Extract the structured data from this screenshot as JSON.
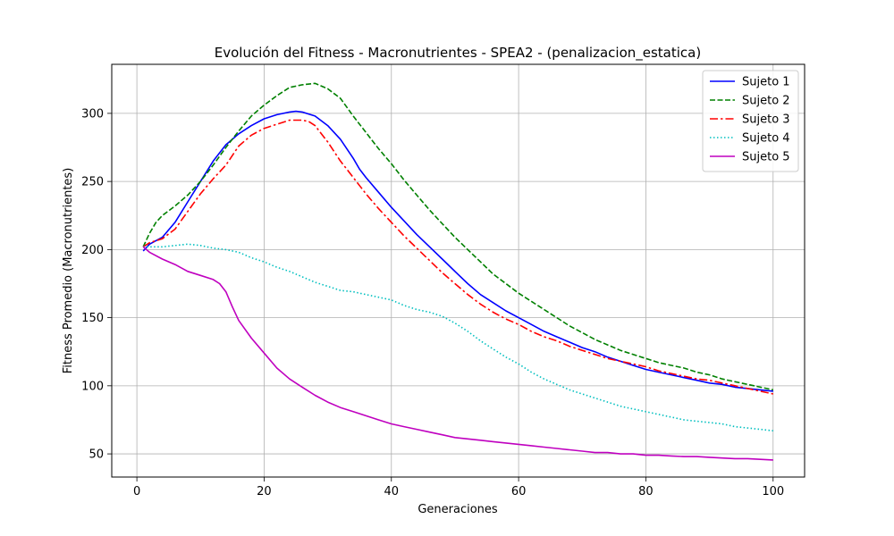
{
  "chart_data": {
    "type": "line",
    "title": "Evolución del Fitness - Macronutrientes - SPEA2 - (penalizacion_estatica)",
    "xlabel": "Generaciones",
    "ylabel": "Fitness Promedio (Macronutrientes)",
    "xlim": [
      -3.95,
      104.95
    ],
    "ylim": [
      33,
      336
    ],
    "xticks": [
      0,
      20,
      40,
      60,
      80,
      100
    ],
    "yticks": [
      50,
      100,
      150,
      200,
      250,
      300
    ],
    "grid": true,
    "legend_position": "top-right",
    "series": [
      {
        "name": "Sujeto 1",
        "color": "#0000ff",
        "dash": "solid",
        "x": [
          1,
          2,
          4,
          6,
          8,
          10,
          12,
          14,
          16,
          18,
          20,
          22,
          24,
          25,
          26,
          28,
          30,
          32,
          34,
          35,
          36,
          38,
          40,
          42,
          44,
          46,
          48,
          50,
          52,
          54,
          56,
          58,
          60,
          62,
          64,
          66,
          68,
          70,
          72,
          74,
          76,
          78,
          80,
          82,
          84,
          86,
          88,
          90,
          92,
          94,
          96,
          98,
          100
        ],
        "values": [
          199,
          204,
          209,
          220,
          235,
          250,
          265,
          277,
          285,
          291,
          296,
          299,
          301,
          301.5,
          301,
          298,
          291,
          281,
          267,
          259,
          253,
          242,
          231,
          221,
          211,
          202,
          193,
          184,
          175,
          167,
          161,
          155,
          150,
          145,
          140,
          136,
          132,
          128,
          125,
          121,
          118,
          115,
          112,
          110,
          108,
          106,
          104,
          102,
          101,
          99,
          98,
          97,
          96
        ]
      },
      {
        "name": "Sujeto 2",
        "color": "#008000",
        "dash": "dashed",
        "x": [
          1,
          2,
          3,
          4,
          6,
          8,
          10,
          12,
          14,
          16,
          18,
          20,
          22,
          24,
          26,
          28,
          30,
          32,
          34,
          36,
          38,
          40,
          42,
          44,
          46,
          48,
          50,
          52,
          54,
          56,
          58,
          60,
          62,
          64,
          66,
          68,
          70,
          72,
          74,
          76,
          78,
          80,
          82,
          84,
          86,
          88,
          90,
          92,
          94,
          96,
          98,
          100
        ],
        "values": [
          202,
          212,
          220,
          225,
          232,
          240,
          250,
          262,
          275,
          287,
          298,
          306,
          313,
          319,
          321,
          322,
          318,
          311,
          298,
          286,
          274,
          263,
          251,
          240,
          229,
          219,
          209,
          200,
          191,
          182,
          175,
          168,
          162,
          156,
          150,
          144,
          139,
          134,
          130,
          126,
          123,
          120,
          117,
          115,
          113,
          110,
          108,
          105,
          103,
          101,
          99,
          97
        ]
      },
      {
        "name": "Sujeto 3",
        "color": "#ff0000",
        "dash": "dashdot",
        "x": [
          1,
          2,
          4,
          6,
          8,
          10,
          12,
          14,
          16,
          18,
          20,
          22,
          24,
          26,
          27,
          28,
          30,
          32,
          34,
          36,
          38,
          40,
          42,
          44,
          46,
          48,
          50,
          52,
          54,
          56,
          58,
          60,
          62,
          64,
          66,
          68,
          70,
          72,
          74,
          76,
          78,
          80,
          82,
          84,
          86,
          88,
          90,
          92,
          94,
          96,
          98,
          100
        ],
        "values": [
          202,
          205,
          208,
          215,
          228,
          241,
          252,
          262,
          276,
          284,
          289,
          292,
          295,
          295,
          294,
          291,
          279,
          265,
          253,
          241,
          230,
          220,
          210,
          201,
          192,
          183,
          175,
          167,
          160,
          154,
          149,
          145,
          140,
          136,
          133,
          129,
          126,
          123,
          120,
          118,
          116,
          114,
          111,
          109,
          107,
          105,
          104,
          102,
          100,
          98,
          96,
          94
        ]
      },
      {
        "name": "Sujeto 4",
        "color": "#00bfbf",
        "dash": "dotted",
        "x": [
          1,
          2,
          4,
          6,
          8,
          10,
          12,
          14,
          16,
          18,
          20,
          22,
          24,
          26,
          28,
          30,
          32,
          34,
          36,
          38,
          40,
          42,
          44,
          46,
          48,
          50,
          52,
          54,
          56,
          58,
          60,
          62,
          64,
          66,
          68,
          70,
          72,
          74,
          76,
          78,
          80,
          82,
          84,
          86,
          88,
          90,
          92,
          94,
          96,
          98,
          100
        ],
        "values": [
          202,
          202,
          202,
          203,
          204,
          203,
          201,
          200,
          198,
          194,
          191,
          187,
          184,
          180,
          176,
          173,
          170,
          169,
          167,
          165,
          163,
          159,
          156,
          154,
          151,
          146,
          140,
          133,
          127,
          121,
          116,
          110,
          105,
          101,
          97,
          94,
          91,
          88,
          85,
          83,
          81,
          79,
          77,
          75,
          74,
          73,
          72,
          70,
          69,
          68,
          67
        ]
      },
      {
        "name": "Sujeto 5",
        "color": "#bf00bf",
        "dash": "solid",
        "x": [
          1,
          2,
          4,
          6,
          8,
          10,
          12,
          13,
          14,
          15,
          16,
          18,
          20,
          22,
          24,
          26,
          28,
          30,
          32,
          34,
          36,
          38,
          40,
          42,
          44,
          46,
          48,
          50,
          52,
          54,
          56,
          58,
          60,
          62,
          64,
          66,
          68,
          70,
          72,
          74,
          76,
          78,
          80,
          82,
          84,
          86,
          88,
          90,
          92,
          94,
          96,
          98,
          100
        ],
        "values": [
          202,
          198,
          193,
          189,
          184,
          181,
          178,
          175,
          169,
          158,
          148,
          135,
          124,
          113,
          105,
          99,
          93,
          88,
          84,
          81,
          78,
          75,
          72,
          70,
          68,
          66,
          64,
          62,
          61,
          60,
          59,
          58,
          57,
          56,
          55,
          54,
          53,
          52,
          51,
          51,
          50,
          50,
          49,
          49,
          48.5,
          48,
          48,
          47.5,
          47,
          46.5,
          46.5,
          46,
          45.5
        ]
      }
    ]
  }
}
